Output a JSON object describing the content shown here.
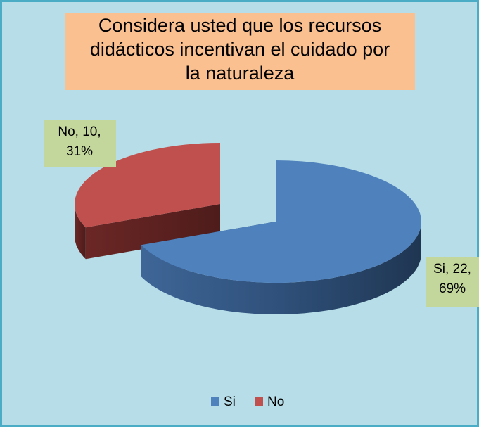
{
  "chart_data": {
    "type": "pie3d",
    "title": [
      "Considera usted que los recursos",
      "didácticos incentivan el cuidado por",
      "la naturaleza"
    ],
    "categories": [
      "Si",
      "No"
    ],
    "values": [
      22,
      10
    ],
    "value_labels": [
      [
        "Si, 22,",
        "69%"
      ],
      [
        "No, 10,",
        "31%"
      ]
    ],
    "colors": [
      "#4f81bd",
      "#c0504d"
    ],
    "legend": "bottom"
  }
}
